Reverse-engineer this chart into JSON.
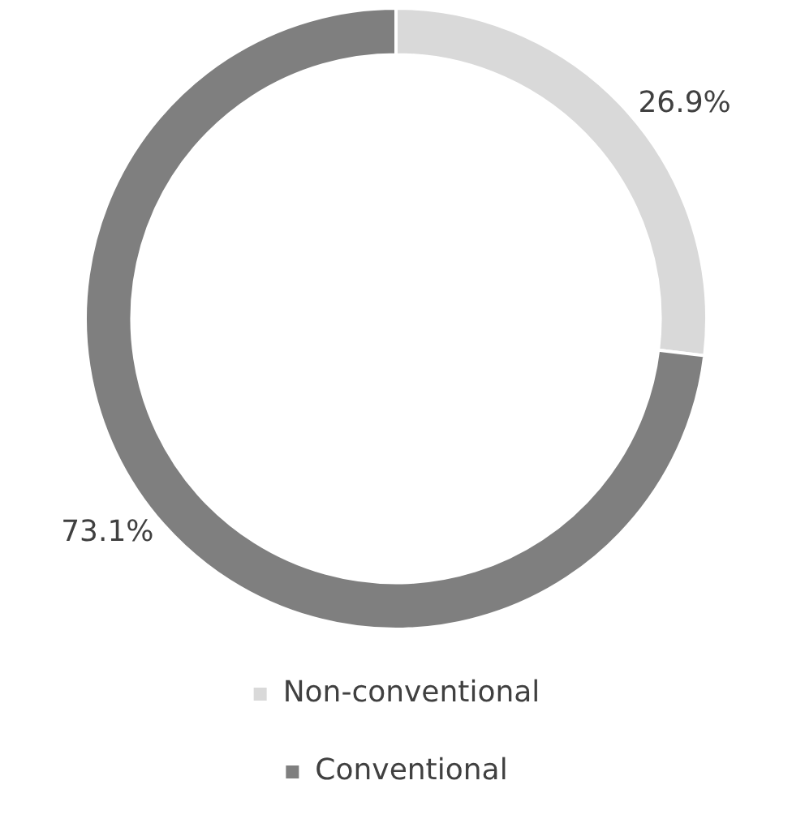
{
  "chart_data": {
    "type": "donut",
    "categories": [
      "Non-conventional",
      "Conventional"
    ],
    "values": [
      26.9,
      73.1
    ],
    "colors": [
      "#d9d9d9",
      "#7f7f7f"
    ],
    "value_labels": [
      "26.9%",
      "73.1%"
    ],
    "legend": "bottom"
  }
}
